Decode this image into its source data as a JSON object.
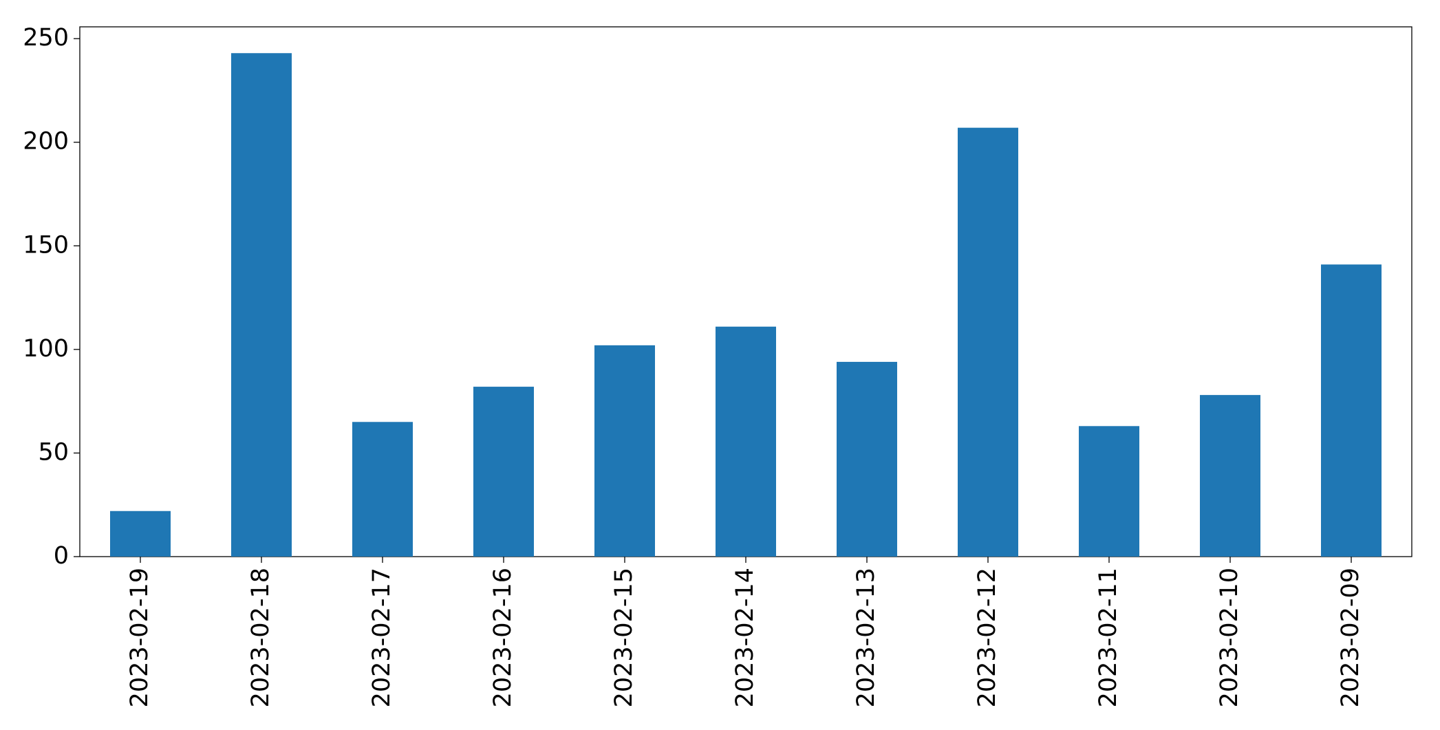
{
  "chart_data": {
    "type": "bar",
    "categories": [
      "2023-02-19",
      "2023-02-18",
      "2023-02-17",
      "2023-02-16",
      "2023-02-15",
      "2023-02-14",
      "2023-02-13",
      "2023-02-12",
      "2023-02-11",
      "2023-02-10",
      "2023-02-09"
    ],
    "values": [
      22,
      243,
      65,
      82,
      102,
      111,
      94,
      207,
      63,
      78,
      141
    ],
    "color": "#1f77b4",
    "ylim": [
      0,
      255.7
    ],
    "yticks": [
      0,
      50,
      100,
      150,
      200,
      250
    ],
    "grid": false
  }
}
